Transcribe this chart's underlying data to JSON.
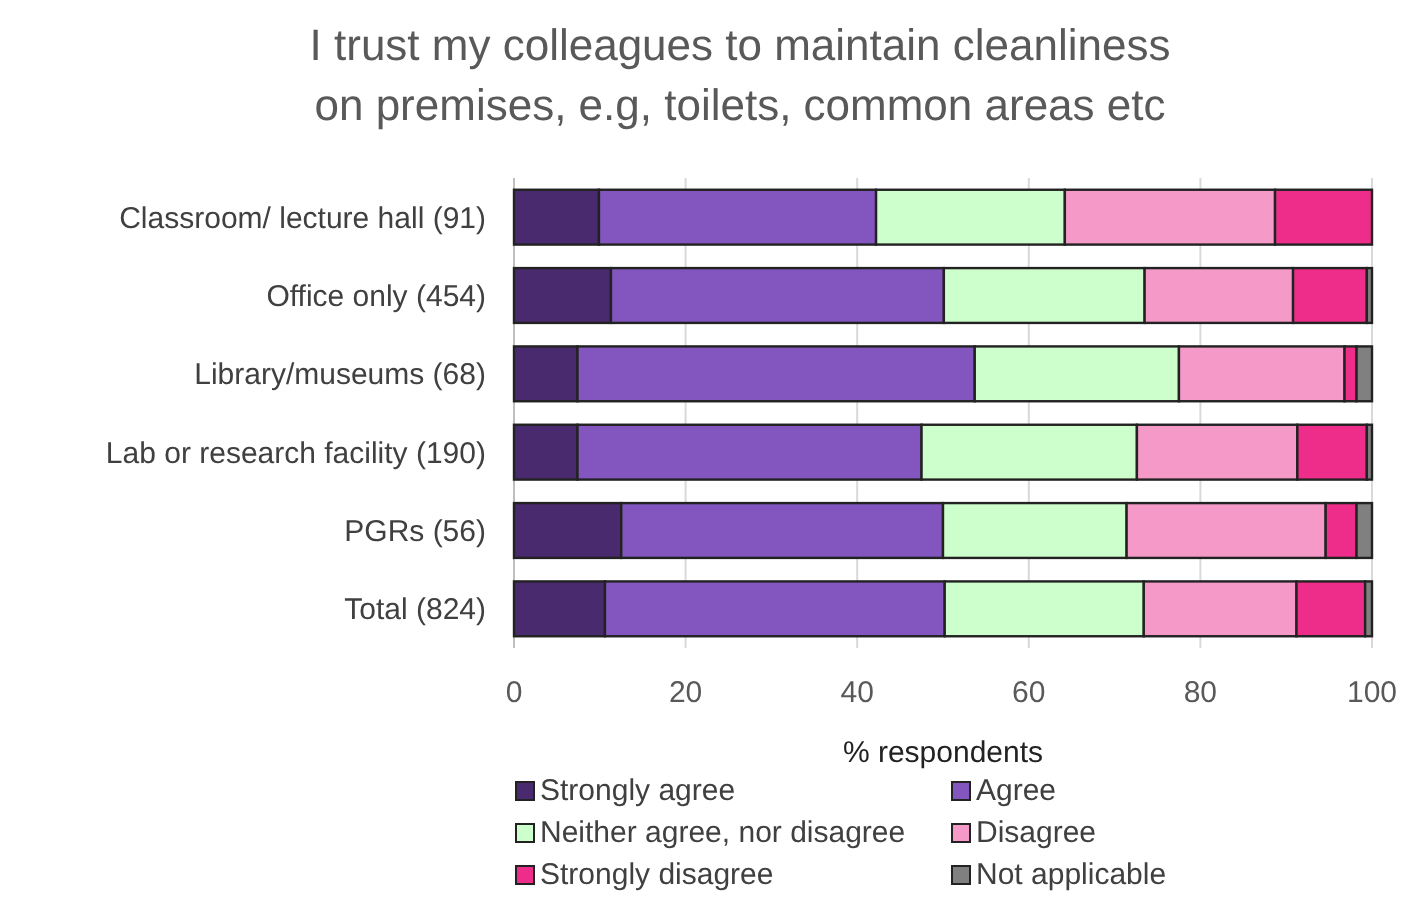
{
  "chart_data": {
    "type": "bar",
    "orientation": "horizontal",
    "stacked": true,
    "title": "I trust my colleagues to maintain cleanliness\non premises, e.g, toilets, common areas etc",
    "xlabel": "% respondents",
    "categories": [
      "Classroom/ lecture hall (91)",
      "Office only (454)",
      "Library/museums (68)",
      "Lab or research facility (190)",
      "PGRs (56)",
      "Total (824)"
    ],
    "series": [
      {
        "name": "Strongly agree",
        "color": "#4a2a6e",
        "values": [
          9.9,
          11.3,
          7.4,
          7.4,
          12.5,
          10.6
        ]
      },
      {
        "name": "Agree",
        "color": "#8256be",
        "values": [
          32.3,
          38.8,
          46.3,
          40.1,
          37.5,
          39.6
        ]
      },
      {
        "name": "Neither agree, nor disagree",
        "color": "#ccffcc",
        "values": [
          22.0,
          23.4,
          23.8,
          25.1,
          21.4,
          23.2
        ]
      },
      {
        "name": "Disagree",
        "color": "#f59ac8",
        "values": [
          24.5,
          17.3,
          19.3,
          18.7,
          23.2,
          17.8
        ]
      },
      {
        "name": "Strongly disagree",
        "color": "#ee2d8a",
        "values": [
          11.3,
          8.6,
          1.4,
          8.1,
          3.6,
          8.0
        ]
      },
      {
        "name": "Not applicable",
        "color": "#808080",
        "values": [
          0,
          0.6,
          1.8,
          0.6,
          1.8,
          0.8
        ]
      }
    ],
    "xlim": [
      0,
      100
    ],
    "xticks": [
      0,
      20,
      40,
      60,
      80,
      100
    ],
    "grid": "x",
    "legend": "bottom"
  }
}
